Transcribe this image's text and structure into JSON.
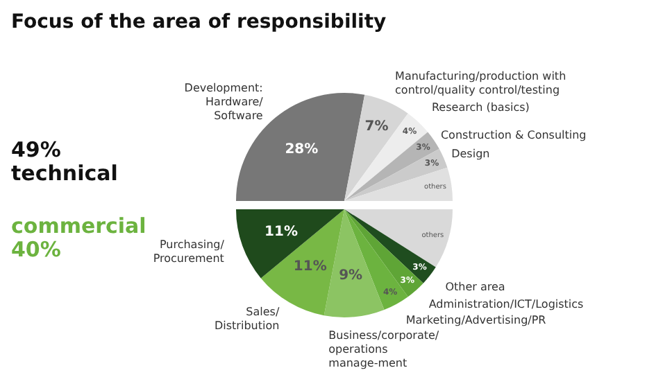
{
  "chart_data": {
    "type": "pie",
    "title": "Focus of the area of responsibility",
    "categories": [
      "Development: Hardware/Software",
      "Manufacturing/production with control/quality control/testing",
      "Research (basics)",
      "Construction & Consulting",
      "Design",
      null,
      null,
      "Other area",
      "Administration/ICT/Logistics",
      "Marketing/Advertising/PR",
      "Business/corporate/operations manage-ment",
      "Sales/Distribution",
      "Purchasing/Procurement"
    ],
    "values": [
      28,
      7,
      4,
      3,
      3,
      5,
      9,
      3,
      3,
      4,
      9,
      11,
      11
    ],
    "value_labels": [
      "28%",
      "7%",
      "4%",
      "3%",
      "3%",
      "others",
      "others",
      "3%",
      "3%",
      "4%",
      "9%",
      "11%",
      "11%"
    ],
    "colors": [
      "#777777",
      "#d6d6d6",
      "#ededed",
      "#b5b5b5",
      "#cbcbcb",
      "#e0e0e0",
      "#d9d9d9",
      "#1f4d1f",
      "#5fa536",
      "#6cb33f",
      "#8cc463",
      "#78b845",
      "#1f4a1c"
    ],
    "annotations": [
      "49% technical",
      "commercial 40%"
    ],
    "legend": false
  }
}
